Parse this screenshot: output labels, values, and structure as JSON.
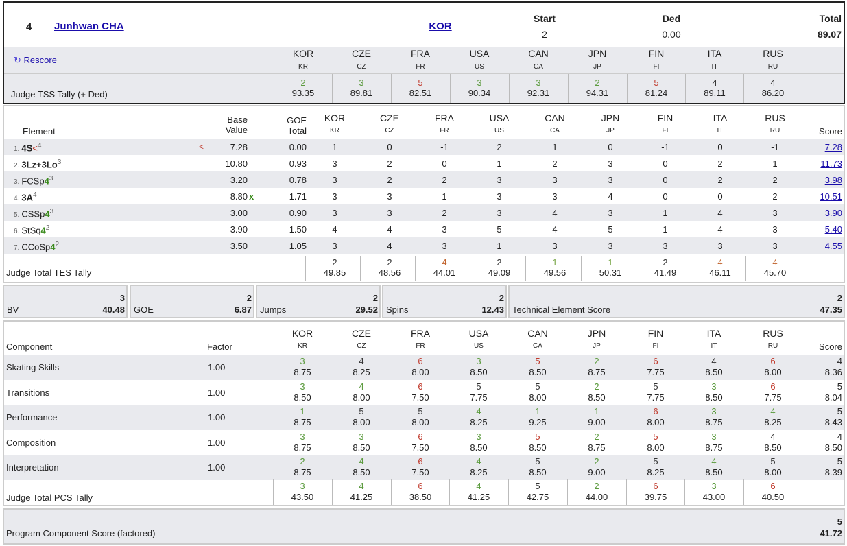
{
  "header": {
    "rank": "4",
    "skater": "Junhwan CHA",
    "nation": "KOR",
    "start_label": "Start",
    "start_value": "2",
    "ded_label": "Ded",
    "ded_value": "0.00",
    "total_label": "Total",
    "total_value": "89.07",
    "rescore_label": "Rescore",
    "tss_label": "Judge TSS Tally (+ Ded)"
  },
  "judges": [
    {
      "code": "KOR",
      "short": "KR"
    },
    {
      "code": "CZE",
      "short": "CZ"
    },
    {
      "code": "FRA",
      "short": "FR"
    },
    {
      "code": "USA",
      "short": "US"
    },
    {
      "code": "CAN",
      "short": "CA"
    },
    {
      "code": "JPN",
      "short": "JP"
    },
    {
      "code": "FIN",
      "short": "FI"
    },
    {
      "code": "ITA",
      "short": "IT"
    },
    {
      "code": "RUS",
      "short": "RU"
    }
  ],
  "tss_tally": [
    {
      "rank": "2",
      "value": "93.35",
      "color": "#5a9a3c"
    },
    {
      "rank": "3",
      "value": "89.81",
      "color": "#5a9a3c"
    },
    {
      "rank": "5",
      "value": "82.51",
      "color": "#c0392b"
    },
    {
      "rank": "3",
      "value": "90.34",
      "color": "#5a9a3c"
    },
    {
      "rank": "3",
      "value": "92.31",
      "color": "#5a9a3c"
    },
    {
      "rank": "2",
      "value": "94.31",
      "color": "#5a9a3c"
    },
    {
      "rank": "5",
      "value": "81.24",
      "color": "#c0392b"
    },
    {
      "rank": "4",
      "value": "89.11",
      "color": "#333333"
    },
    {
      "rank": "4",
      "value": "86.20",
      "color": "#333333"
    }
  ],
  "elements_header": {
    "element": "Element",
    "base_value_1": "Base",
    "base_value_2": "Value",
    "goe_1": "GOE",
    "goe_2": "Total",
    "score": "Score"
  },
  "elements": [
    {
      "num": "1.",
      "pre": "",
      "bold": "4S",
      "suffix": "<",
      "sup": "4",
      "flag": "<",
      "bv": "7.28",
      "bvx": "",
      "goe": "0.00",
      "marks": [
        "1",
        "0",
        "-1",
        "2",
        "1",
        "0",
        "-1",
        "0",
        "-1"
      ],
      "score": "7.28"
    },
    {
      "num": "2.",
      "pre": "",
      "bold": "3Lz+3Lo",
      "suffix": "",
      "sup": "3",
      "flag": "",
      "bv": "10.80",
      "bvx": "",
      "goe": "0.93",
      "marks": [
        "3",
        "2",
        "0",
        "1",
        "2",
        "3",
        "0",
        "2",
        "1"
      ],
      "score": "11.73"
    },
    {
      "num": "3.",
      "pre": "FCSp",
      "bold": "4",
      "suffix": "",
      "sup": "3",
      "flag": "",
      "bv": "3.20",
      "bvx": "",
      "goe": "0.78",
      "marks": [
        "3",
        "2",
        "2",
        "3",
        "3",
        "3",
        "0",
        "2",
        "2"
      ],
      "score": "3.98"
    },
    {
      "num": "4.",
      "pre": "",
      "bold": "3A",
      "suffix": "",
      "sup": "4",
      "flag": "",
      "bv": "8.80",
      "bvx": "x",
      "goe": "1.71",
      "marks": [
        "3",
        "3",
        "1",
        "3",
        "3",
        "4",
        "0",
        "0",
        "2"
      ],
      "score": "10.51"
    },
    {
      "num": "5.",
      "pre": "CSSp",
      "bold": "4",
      "suffix": "",
      "sup": "3",
      "flag": "",
      "bv": "3.00",
      "bvx": "",
      "goe": "0.90",
      "marks": [
        "3",
        "3",
        "2",
        "3",
        "4",
        "3",
        "1",
        "4",
        "3"
      ],
      "score": "3.90"
    },
    {
      "num": "6.",
      "pre": "StSq",
      "bold": "4",
      "suffix": "",
      "sup": "2",
      "flag": "",
      "bv": "3.90",
      "bvx": "",
      "goe": "1.50",
      "marks": [
        "4",
        "4",
        "3",
        "5",
        "4",
        "5",
        "1",
        "4",
        "3"
      ],
      "score": "5.40"
    },
    {
      "num": "7.",
      "pre": "CCoSp",
      "bold": "4",
      "suffix": "",
      "sup": "2",
      "flag": "",
      "bv": "3.50",
      "bvx": "",
      "goe": "1.05",
      "marks": [
        "3",
        "4",
        "3",
        "1",
        "3",
        "3",
        "3",
        "3",
        "3"
      ],
      "score": "4.55"
    }
  ],
  "tes_tally_label": "Judge Total TES Tally",
  "tes_tally": [
    {
      "rank": "2",
      "value": "49.85",
      "color": "#333333"
    },
    {
      "rank": "2",
      "value": "48.56",
      "color": "#333333"
    },
    {
      "rank": "4",
      "value": "44.01",
      "color": "#c0622b"
    },
    {
      "rank": "2",
      "value": "49.09",
      "color": "#333333"
    },
    {
      "rank": "1",
      "value": "49.56",
      "color": "#7aa84a"
    },
    {
      "rank": "1",
      "value": "50.31",
      "color": "#7aa84a"
    },
    {
      "rank": "2",
      "value": "41.49",
      "color": "#333333"
    },
    {
      "rank": "4",
      "value": "46.11",
      "color": "#c0622b"
    },
    {
      "rank": "4",
      "value": "45.70",
      "color": "#c0622b"
    }
  ],
  "summary": {
    "bv": {
      "label": "BV",
      "rank": "3",
      "value": "40.48"
    },
    "goe": {
      "label": "GOE",
      "rank": "2",
      "value": "6.87"
    },
    "jumps": {
      "label": "Jumps",
      "rank": "2",
      "value": "29.52"
    },
    "spins": {
      "label": "Spins",
      "rank": "2",
      "value": "12.43"
    },
    "tes": {
      "label": "Technical Element Score",
      "rank": "2",
      "value": "47.35"
    }
  },
  "components_header": {
    "component": "Component",
    "factor": "Factor",
    "score": "Score"
  },
  "components": [
    {
      "name": "Skating Skills",
      "factor": "1.00",
      "marks": [
        {
          "r": "3",
          "v": "8.75",
          "c": "#5a9a3c"
        },
        {
          "r": "4",
          "v": "8.25",
          "c": "#333333"
        },
        {
          "r": "6",
          "v": "8.00",
          "c": "#c0392b"
        },
        {
          "r": "3",
          "v": "8.50",
          "c": "#5a9a3c"
        },
        {
          "r": "5",
          "v": "8.50",
          "c": "#c0392b"
        },
        {
          "r": "2",
          "v": "8.75",
          "c": "#5a9a3c"
        },
        {
          "r": "6",
          "v": "7.75",
          "c": "#c0392b"
        },
        {
          "r": "4",
          "v": "8.50",
          "c": "#333333"
        },
        {
          "r": "6",
          "v": "8.00",
          "c": "#c0392b"
        }
      ],
      "rank": "4",
      "score": "8.36"
    },
    {
      "name": "Transitions",
      "factor": "1.00",
      "marks": [
        {
          "r": "3",
          "v": "8.50",
          "c": "#5a9a3c"
        },
        {
          "r": "4",
          "v": "8.00",
          "c": "#5a9a3c"
        },
        {
          "r": "6",
          "v": "7.50",
          "c": "#c0392b"
        },
        {
          "r": "5",
          "v": "7.75",
          "c": "#333333"
        },
        {
          "r": "5",
          "v": "8.00",
          "c": "#333333"
        },
        {
          "r": "2",
          "v": "8.50",
          "c": "#5a9a3c"
        },
        {
          "r": "5",
          "v": "7.75",
          "c": "#333333"
        },
        {
          "r": "3",
          "v": "8.50",
          "c": "#5a9a3c"
        },
        {
          "r": "6",
          "v": "7.75",
          "c": "#c0392b"
        }
      ],
      "rank": "5",
      "score": "8.04"
    },
    {
      "name": "Performance",
      "factor": "1.00",
      "marks": [
        {
          "r": "1",
          "v": "8.75",
          "c": "#5a9a3c"
        },
        {
          "r": "5",
          "v": "8.00",
          "c": "#333333"
        },
        {
          "r": "5",
          "v": "8.00",
          "c": "#333333"
        },
        {
          "r": "4",
          "v": "8.25",
          "c": "#5a9a3c"
        },
        {
          "r": "1",
          "v": "9.25",
          "c": "#5a9a3c"
        },
        {
          "r": "1",
          "v": "9.00",
          "c": "#5a9a3c"
        },
        {
          "r": "6",
          "v": "8.00",
          "c": "#c0392b"
        },
        {
          "r": "3",
          "v": "8.75",
          "c": "#5a9a3c"
        },
        {
          "r": "4",
          "v": "8.25",
          "c": "#5a9a3c"
        }
      ],
      "rank": "5",
      "score": "8.43"
    },
    {
      "name": "Composition",
      "factor": "1.00",
      "marks": [
        {
          "r": "3",
          "v": "8.75",
          "c": "#5a9a3c"
        },
        {
          "r": "3",
          "v": "8.50",
          "c": "#5a9a3c"
        },
        {
          "r": "6",
          "v": "7.50",
          "c": "#c0392b"
        },
        {
          "r": "3",
          "v": "8.50",
          "c": "#5a9a3c"
        },
        {
          "r": "5",
          "v": "8.50",
          "c": "#c0392b"
        },
        {
          "r": "2",
          "v": "8.75",
          "c": "#5a9a3c"
        },
        {
          "r": "5",
          "v": "8.00",
          "c": "#c0392b"
        },
        {
          "r": "3",
          "v": "8.75",
          "c": "#5a9a3c"
        },
        {
          "r": "4",
          "v": "8.50",
          "c": "#333333"
        }
      ],
      "rank": "4",
      "score": "8.50"
    },
    {
      "name": "Interpretation",
      "factor": "1.00",
      "marks": [
        {
          "r": "2",
          "v": "8.75",
          "c": "#5a9a3c"
        },
        {
          "r": "4",
          "v": "8.50",
          "c": "#5a9a3c"
        },
        {
          "r": "6",
          "v": "7.50",
          "c": "#c0392b"
        },
        {
          "r": "4",
          "v": "8.25",
          "c": "#5a9a3c"
        },
        {
          "r": "5",
          "v": "8.50",
          "c": "#333333"
        },
        {
          "r": "2",
          "v": "9.00",
          "c": "#5a9a3c"
        },
        {
          "r": "5",
          "v": "8.25",
          "c": "#333333"
        },
        {
          "r": "4",
          "v": "8.50",
          "c": "#5a9a3c"
        },
        {
          "r": "5",
          "v": "8.00",
          "c": "#333333"
        }
      ],
      "rank": "5",
      "score": "8.39"
    }
  ],
  "pcs_tally_label": "Judge Total PCS Tally",
  "pcs_tally": [
    {
      "rank": "3",
      "value": "43.50",
      "color": "#5a9a3c"
    },
    {
      "rank": "4",
      "value": "41.25",
      "color": "#5a9a3c"
    },
    {
      "rank": "6",
      "value": "38.50",
      "color": "#c0392b"
    },
    {
      "rank": "4",
      "value": "41.25",
      "color": "#5a9a3c"
    },
    {
      "rank": "5",
      "value": "42.75",
      "color": "#333333"
    },
    {
      "rank": "2",
      "value": "44.00",
      "color": "#5a9a3c"
    },
    {
      "rank": "6",
      "value": "39.75",
      "color": "#c0392b"
    },
    {
      "rank": "3",
      "value": "43.00",
      "color": "#5a9a3c"
    },
    {
      "rank": "6",
      "value": "40.50",
      "color": "#c0392b"
    }
  ],
  "pcs": {
    "label": "Program Component Score (factored)",
    "rank": "5",
    "value": "41.72"
  }
}
